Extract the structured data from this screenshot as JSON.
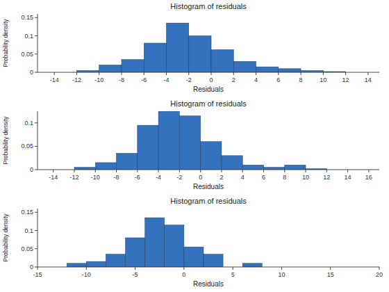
{
  "chart_data": [
    {
      "type": "histogram",
      "title": "Histogram of residuals",
      "x_label": "Residuals",
      "y_label": "Probability density",
      "color": "#3472bd",
      "bins": [
        -14,
        -12,
        -10,
        -8,
        -6,
        -4,
        -2,
        0,
        2,
        4,
        6,
        8,
        10,
        12,
        14
      ],
      "values": [
        0.0,
        0.005,
        0.02,
        0.035,
        0.08,
        0.135,
        0.1,
        0.062,
        0.03,
        0.015,
        0.01,
        0.005,
        0.002,
        0.0
      ],
      "xlim": [
        -15.5,
        15
      ],
      "ylim": [
        0,
        0.16
      ],
      "xticks": [
        -14,
        -12,
        -10,
        -8,
        -6,
        -4,
        -2,
        0,
        2,
        4,
        6,
        8,
        10,
        12,
        14
      ],
      "yticks": [
        0,
        0.05,
        0.1,
        0.15
      ]
    },
    {
      "type": "histogram",
      "title": "Histogram of residuals",
      "x_label": "Residuals",
      "y_label": "Probability density",
      "color": "#3472bd",
      "bins": [
        -14,
        -12,
        -10,
        -8,
        -6,
        -4,
        -2,
        0,
        2,
        4,
        6,
        8,
        10,
        12,
        14,
        16
      ],
      "values": [
        0.0,
        0.005,
        0.015,
        0.035,
        0.095,
        0.125,
        0.115,
        0.06,
        0.03,
        0.01,
        0.005,
        0.01,
        0.002,
        0.0,
        0.0
      ],
      "xlim": [
        -15.5,
        17
      ],
      "ylim": [
        0,
        0.125
      ],
      "xticks": [
        -14,
        -12,
        -10,
        -8,
        -6,
        -4,
        -2,
        0,
        2,
        4,
        6,
        8,
        10,
        12,
        14,
        16
      ],
      "yticks": [
        0,
        0.05,
        0.1
      ]
    },
    {
      "type": "histogram",
      "title": "Histogram of residuals",
      "x_label": "Residuals",
      "y_label": "Probability density",
      "color": "#3472bd",
      "bins": [
        -14,
        -12,
        -10,
        -8,
        -6,
        -4,
        -2,
        0,
        2,
        4,
        6,
        8,
        10,
        12
      ],
      "values": [
        0.0,
        0.01,
        0.015,
        0.035,
        0.08,
        0.135,
        0.115,
        0.055,
        0.035,
        0.0,
        0.01,
        0.0,
        0.0
      ],
      "xlim": [
        -15,
        20
      ],
      "ylim": [
        0,
        0.16
      ],
      "xticks": [
        -15,
        -10,
        -5,
        0,
        5,
        10,
        15,
        20
      ],
      "yticks": [
        0,
        0.05,
        0.1,
        0.15
      ]
    }
  ]
}
